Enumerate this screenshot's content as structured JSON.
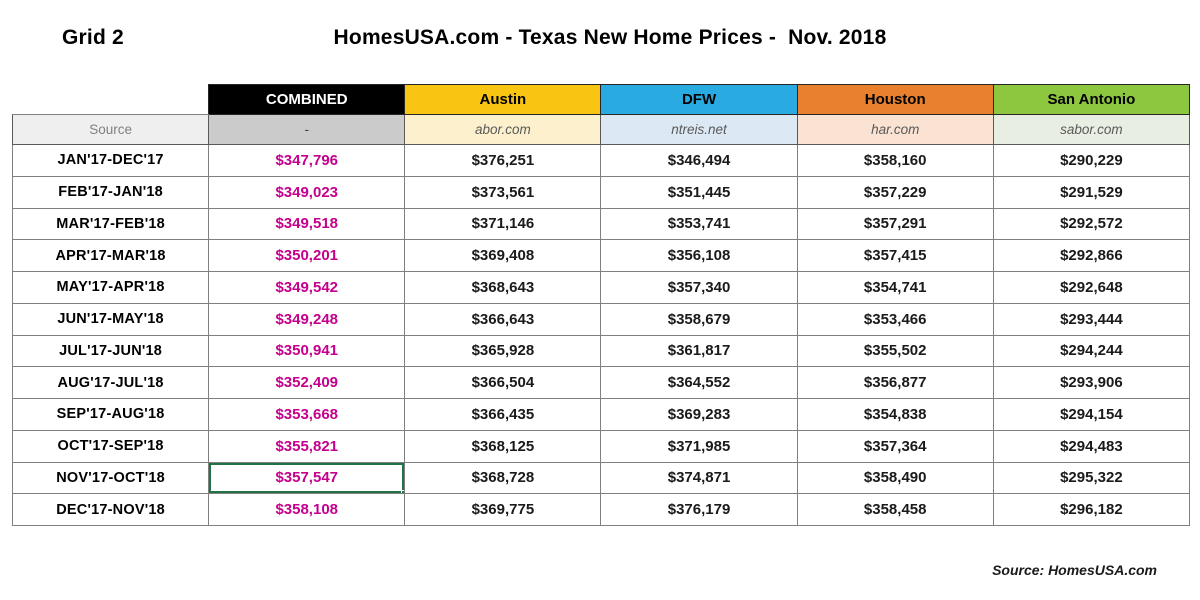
{
  "page": {
    "grid_label": "Grid 2",
    "title": "HomesUSA.com - Texas New Home Prices -  Nov. 2018",
    "footer_source": "Source: HomesUSA.com"
  },
  "colors": {
    "combined_value": "#C4008C",
    "selection_border": "#217346",
    "grid_line": "#7f7f7f"
  },
  "table": {
    "source_row_label": "Source",
    "columns": [
      {
        "key": "combined",
        "label": "COMBINED",
        "source": "-",
        "header_bg": "#000000",
        "header_fg": "#FFFFFF",
        "source_bg": "#CBCBCB"
      },
      {
        "key": "austin",
        "label": "Austin",
        "source": "abor.com",
        "header_bg": "#F9C513",
        "header_fg": "#000000",
        "source_bg": "#FDF1CD"
      },
      {
        "key": "dfw",
        "label": "DFW",
        "source": "ntreis.net",
        "header_bg": "#29ABE2",
        "header_fg": "#000000",
        "source_bg": "#DCE9F5"
      },
      {
        "key": "houston",
        "label": "Houston",
        "source": "har.com",
        "header_bg": "#E8802E",
        "header_fg": "#000000",
        "source_bg": "#FBE3D3"
      },
      {
        "key": "san_antonio",
        "label": "San Antonio",
        "source": "sabor.com",
        "header_bg": "#8DC63F",
        "header_fg": "#000000",
        "source_bg": "#E9EEE2"
      }
    ],
    "selected_cell": {
      "row_period": "NOV'17-OCT'18",
      "column": "combined"
    },
    "rows": [
      {
        "period": "JAN'17-DEC'17",
        "combined": "$347,796",
        "austin": "$376,251",
        "dfw": "$346,494",
        "houston": "$358,160",
        "san_antonio": "$290,229"
      },
      {
        "period": "FEB'17-JAN'18",
        "combined": "$349,023",
        "austin": "$373,561",
        "dfw": "$351,445",
        "houston": "$357,229",
        "san_antonio": "$291,529"
      },
      {
        "period": "MAR'17-FEB'18",
        "combined": "$349,518",
        "austin": "$371,146",
        "dfw": "$353,741",
        "houston": "$357,291",
        "san_antonio": "$292,572"
      },
      {
        "period": "APR'17-MAR'18",
        "combined": "$350,201",
        "austin": "$369,408",
        "dfw": "$356,108",
        "houston": "$357,415",
        "san_antonio": "$292,866"
      },
      {
        "period": "MAY'17-APR'18",
        "combined": "$349,542",
        "austin": "$368,643",
        "dfw": "$357,340",
        "houston": "$354,741",
        "san_antonio": "$292,648"
      },
      {
        "period": "JUN'17-MAY'18",
        "combined": "$349,248",
        "austin": "$366,643",
        "dfw": "$358,679",
        "houston": "$353,466",
        "san_antonio": "$293,444"
      },
      {
        "period": "JUL'17-JUN'18",
        "combined": "$350,941",
        "austin": "$365,928",
        "dfw": "$361,817",
        "houston": "$355,502",
        "san_antonio": "$294,244"
      },
      {
        "period": "AUG'17-JUL'18",
        "combined": "$352,409",
        "austin": "$366,504",
        "dfw": "$364,552",
        "houston": "$356,877",
        "san_antonio": "$293,906"
      },
      {
        "period": "SEP'17-AUG'18",
        "combined": "$353,668",
        "austin": "$366,435",
        "dfw": "$369,283",
        "houston": "$354,838",
        "san_antonio": "$294,154"
      },
      {
        "period": "OCT'17-SEP'18",
        "combined": "$355,821",
        "austin": "$368,125",
        "dfw": "$371,985",
        "houston": "$357,364",
        "san_antonio": "$294,483"
      },
      {
        "period": "NOV'17-OCT'18",
        "combined": "$357,547",
        "austin": "$368,728",
        "dfw": "$374,871",
        "houston": "$358,490",
        "san_antonio": "$295,322"
      },
      {
        "period": "DEC'17-NOV'18",
        "combined": "$358,108",
        "austin": "$369,775",
        "dfw": "$376,179",
        "houston": "$358,458",
        "san_antonio": "$296,182"
      }
    ]
  }
}
